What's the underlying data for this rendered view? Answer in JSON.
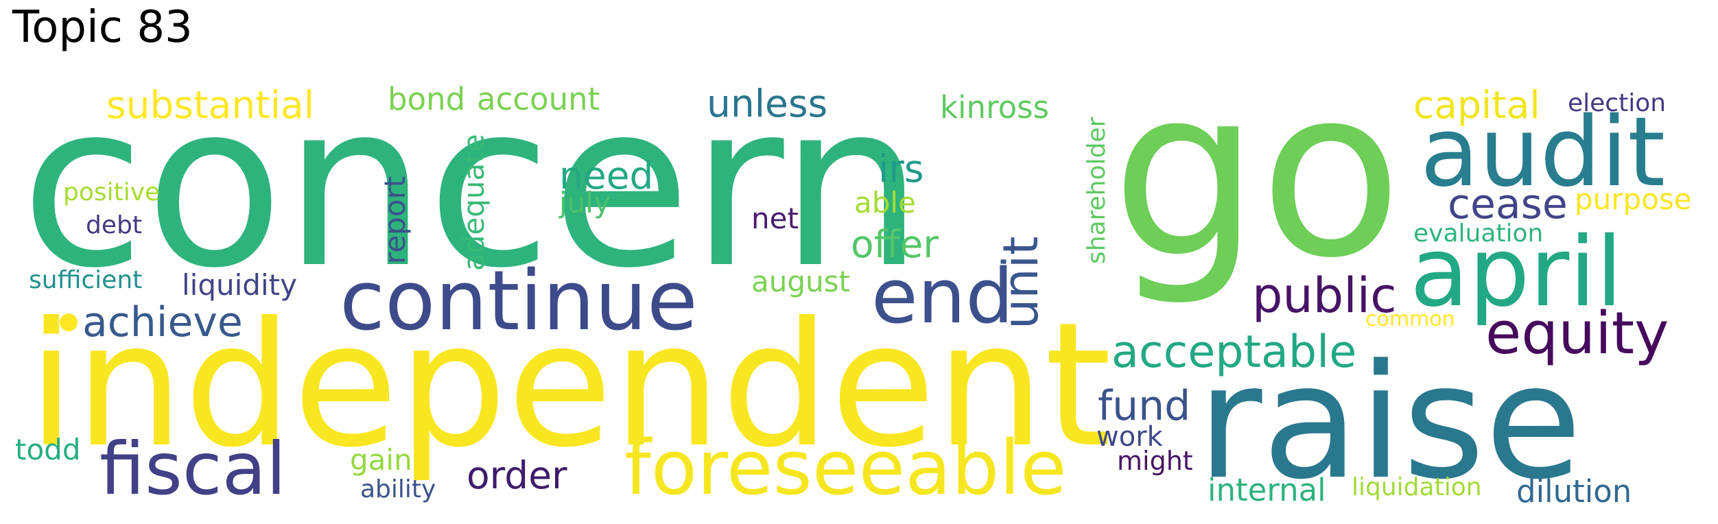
{
  "title": "Topic 83",
  "palette": {
    "c1": "#3c9b3b",
    "c2": "#30b27a",
    "c3": "#74cf52",
    "c4": "#2a788e",
    "c5": "#3f4c8a",
    "c6": "#42236e",
    "c7": "#f5e31e",
    "c8": "#b5de2b",
    "c9": "#22a784",
    "c10": "#5aa66d"
  },
  "words": [
    {
      "text": "concern",
      "color": "#2eb37c"
    },
    {
      "text": "go",
      "color": "#6ece58"
    },
    {
      "text": "independent",
      "color": "#f8e621"
    },
    {
      "text": "raise",
      "color": "#2a788e"
    },
    {
      "text": "audit",
      "color": "#287d8e"
    },
    {
      "text": "april",
      "color": "#22a884"
    },
    {
      "text": "continue",
      "color": "#3e4b8a"
    },
    {
      "text": "foreseeable",
      "color": "#f6e620"
    },
    {
      "text": "fiscal",
      "color": "#424086"
    },
    {
      "text": "end",
      "color": "#3c508b"
    },
    {
      "text": "equity",
      "color": "#450a5c"
    },
    {
      "text": "public",
      "color": "#471365"
    },
    {
      "text": "acceptable",
      "color": "#22a884"
    },
    {
      "text": "achieve",
      "color": "#38598c"
    },
    {
      "text": "unit",
      "color": "#39568c"
    },
    {
      "text": "cease",
      "color": "#414487"
    },
    {
      "text": "substantial",
      "color": "#fde725"
    },
    {
      "text": "capital",
      "color": "#f1e51d"
    },
    {
      "text": "unless",
      "color": "#2b758e"
    },
    {
      "text": "fund",
      "color": "#3b528b"
    },
    {
      "text": "order",
      "color": "#3e1b6a"
    },
    {
      "text": "need",
      "color": "#23a883"
    },
    {
      "text": "offer",
      "color": "#54c568"
    },
    {
      "text": "irs",
      "color": "#1f9a8a"
    },
    {
      "text": "report",
      "color": "#3b528b"
    },
    {
      "text": "adequate",
      "color": "#38b977"
    },
    {
      "text": "kinross",
      "color": "#5ec962"
    },
    {
      "text": "bond",
      "color": "#7ad151"
    },
    {
      "text": "account",
      "color": "#7ad151"
    },
    {
      "text": "july",
      "color": "#4ac16d"
    },
    {
      "text": "able",
      "color": "#a5db36"
    },
    {
      "text": "net",
      "color": "#481d6f"
    },
    {
      "text": "august",
      "color": "#7ad151"
    },
    {
      "text": "purpose",
      "color": "#f8e621"
    },
    {
      "text": "election",
      "color": "#453781"
    },
    {
      "text": "evaluation",
      "color": "#2fb47c"
    },
    {
      "text": "shareholder",
      "color": "#5ec962"
    },
    {
      "text": "liquidity",
      "color": "#414487"
    },
    {
      "text": "sufficient",
      "color": "#21908d"
    },
    {
      "text": "positive",
      "color": "#a8db34"
    },
    {
      "text": "debt",
      "color": "#443983"
    },
    {
      "text": "todd",
      "color": "#27ad81"
    },
    {
      "text": "gain",
      "color": "#95d840"
    },
    {
      "text": "ability",
      "color": "#3b528b"
    },
    {
      "text": "work",
      "color": "#3f4788"
    },
    {
      "text": "might",
      "color": "#471365"
    },
    {
      "text": "common",
      "color": "#fde725"
    },
    {
      "text": "internal",
      "color": "#2db27d"
    },
    {
      "text": "liquidation",
      "color": "#a2da37"
    },
    {
      "text": "dilution",
      "color": "#31688e"
    }
  ]
}
